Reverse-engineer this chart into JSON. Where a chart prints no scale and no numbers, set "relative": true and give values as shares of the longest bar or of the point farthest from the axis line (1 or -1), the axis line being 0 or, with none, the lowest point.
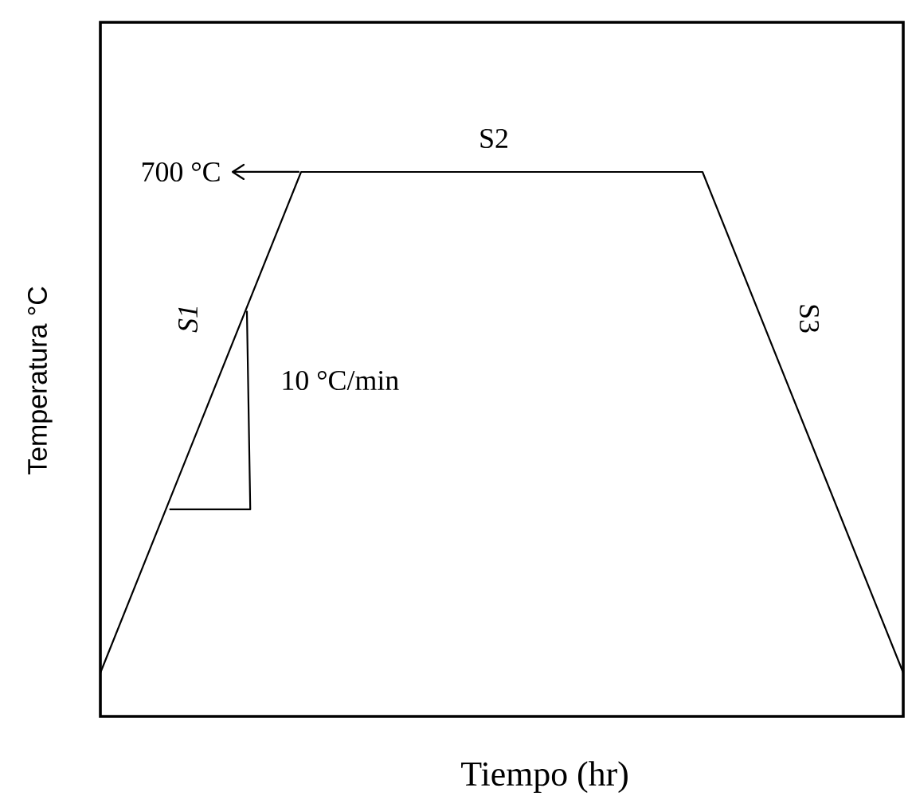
{
  "chart_data": {
    "type": "line",
    "relative": true,
    "xlabel": "Tiempo (hr)",
    "ylabel": "Temperatura °C",
    "categories": [
      null,
      null,
      null,
      null,
      null
    ],
    "series": [
      {
        "color": "#000000",
        "values": [
          0.08,
          1,
          1,
          1,
          0.08
        ]
      }
    ],
    "annotations": [
      "700 °C",
      "S2",
      "S1",
      "S3",
      "10 °C/min"
    ]
  }
}
